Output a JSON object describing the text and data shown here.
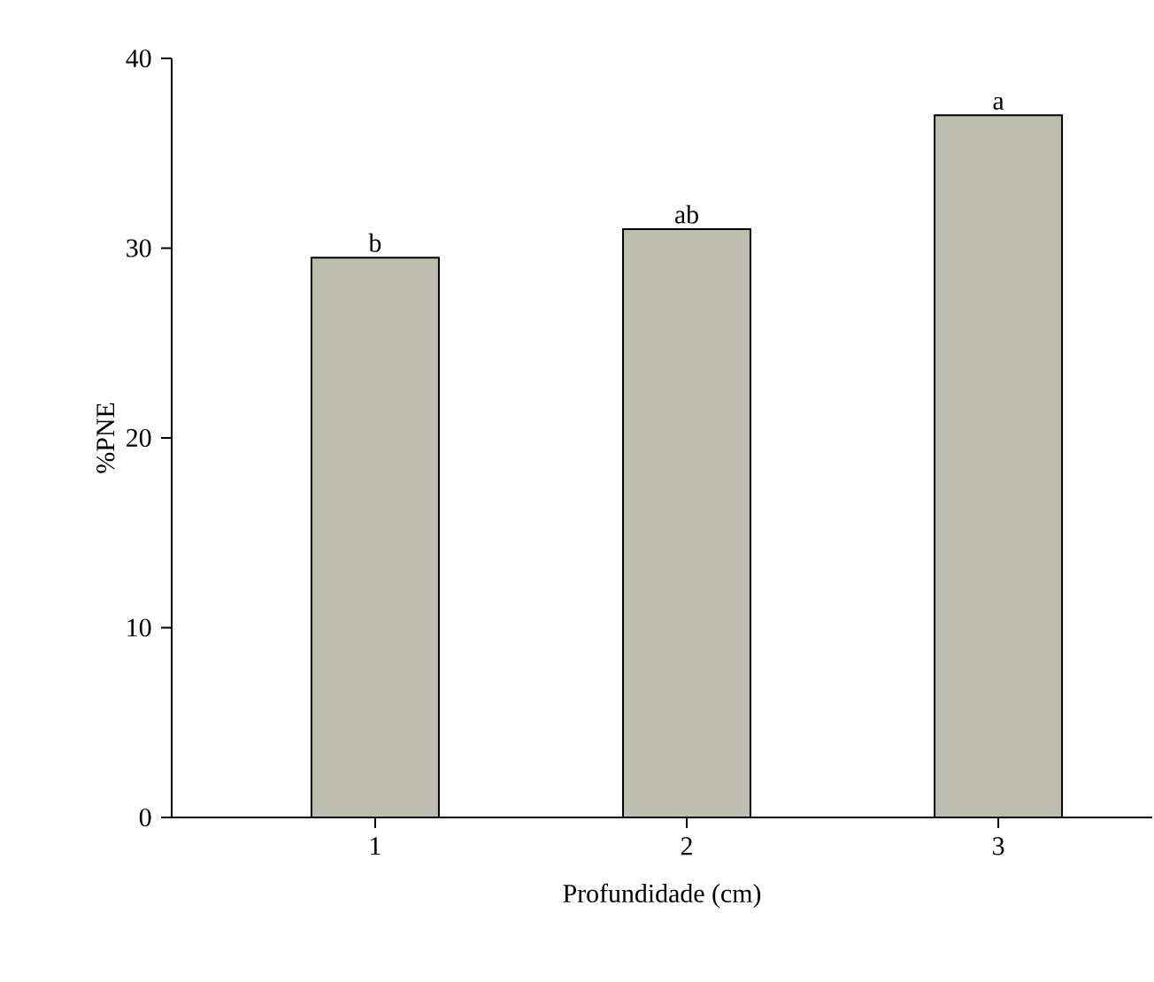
{
  "chart_data": {
    "type": "bar",
    "xlabel": "Profundidade (cm)",
    "ylabel": "%PNE",
    "categories": [
      "1",
      "2",
      "3"
    ],
    "values": [
      29.5,
      31,
      37
    ],
    "color": "#bdbdb0",
    "ylim": [
      0,
      40
    ],
    "yticks": [
      0,
      10,
      20,
      30,
      40
    ],
    "annotations": [
      {
        "text": "b",
        "x": "1",
        "y": 29.5
      },
      {
        "text": "ab",
        "x": "2",
        "y": 31
      },
      {
        "text": "a",
        "x": "3",
        "y": 37
      }
    ]
  }
}
